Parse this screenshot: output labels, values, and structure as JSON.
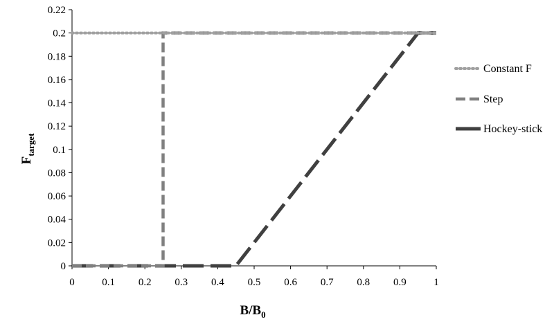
{
  "chart_data": {
    "type": "line",
    "xlabel": "B/B",
    "xlabel_sub": "0",
    "ylabel": "F",
    "ylabel_sub": "target",
    "xlim": [
      0,
      1
    ],
    "ylim": [
      0,
      0.22
    ],
    "x_ticks": [
      "0",
      "0.1",
      "0.2",
      "0.3",
      "0.4",
      "0.5",
      "0.6",
      "0.7",
      "0.8",
      "0.9",
      "1"
    ],
    "y_ticks": [
      "0",
      "0.02",
      "0.04",
      "0.06",
      "0.08",
      "0.1",
      "0.12",
      "0.14",
      "0.16",
      "0.18",
      "0.2",
      "0.22"
    ],
    "grid": false,
    "legend_position": "right",
    "series": [
      {
        "name": "Constant F",
        "style": "dotted",
        "color": "#a0a0a0",
        "x": [
          0,
          1
        ],
        "y": [
          0.2,
          0.2
        ]
      },
      {
        "name": "Step",
        "style": "dashed",
        "color": "#808080",
        "x": [
          0,
          0.25,
          0.25,
          1
        ],
        "y": [
          0,
          0,
          0.2,
          0.2
        ]
      },
      {
        "name": "Hockey-stick",
        "style": "long-dash",
        "color": "#404040",
        "x": [
          0,
          0.45,
          0.95,
          1
        ],
        "y": [
          0,
          0,
          0.2,
          0.2
        ]
      }
    ]
  }
}
